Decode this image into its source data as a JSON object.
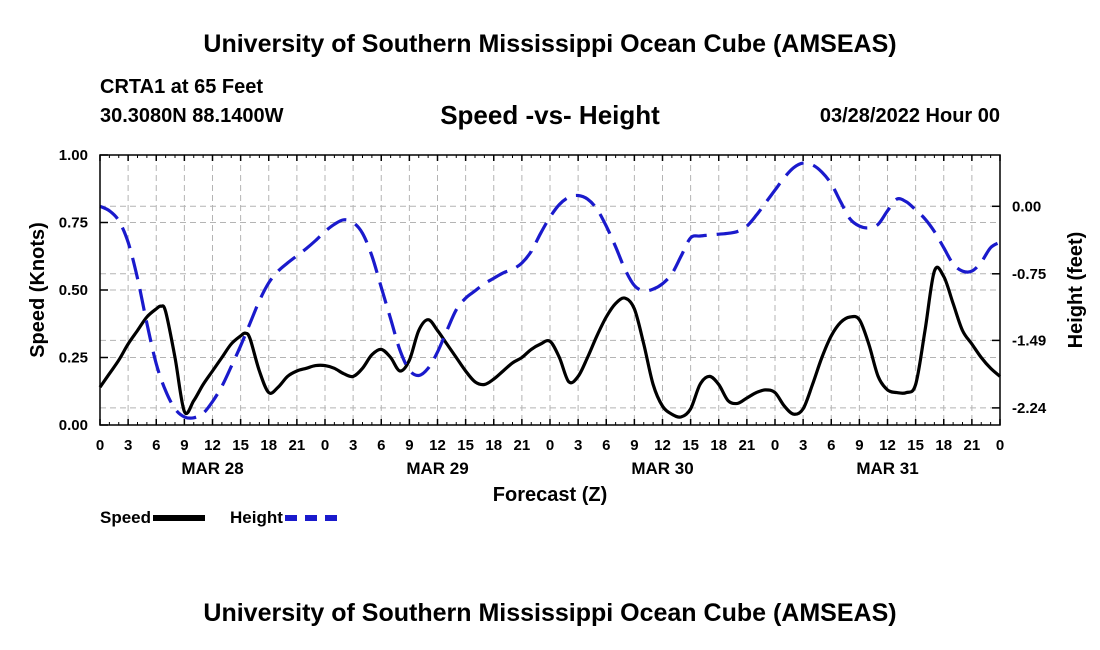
{
  "titles": {
    "main": "University of Southern Mississippi Ocean Cube (AMSEAS)",
    "footer": "University of Southern Mississippi Ocean Cube (AMSEAS)"
  },
  "station": {
    "name": "CRTA1 at 65 Feet",
    "latlon": "30.3080N  88.1400W",
    "datetime": "03/28/2022 Hour 00"
  },
  "legend": {
    "speed_label": "Speed",
    "height_label": "Height"
  },
  "colors": {
    "speed": "#000000",
    "height": "#1a1acc",
    "grid": "#b4b4b4"
  },
  "chart_data": {
    "type": "line",
    "title": "Speed -vs- Height",
    "xlabel": "Forecast (Z)",
    "ylabel": "Speed (Knots)",
    "ylabel_right": "Height (feet)",
    "x_range": [
      0,
      96
    ],
    "ylim": [
      0,
      1.0
    ],
    "y2lim": [
      -2.43,
      0.57
    ],
    "x_ticks": [
      0,
      3,
      6,
      9,
      12,
      15,
      18,
      21,
      24,
      27,
      30,
      33,
      36,
      39,
      42,
      45,
      48,
      51,
      54,
      57,
      60,
      63,
      66,
      69,
      72,
      75,
      78,
      81,
      84,
      87,
      90,
      93,
      96
    ],
    "x_tick_labels": [
      "0",
      "3",
      "6",
      "9",
      "12",
      "15",
      "18",
      "21",
      "0",
      "3",
      "6",
      "9",
      "12",
      "15",
      "18",
      "21",
      "0",
      "3",
      "6",
      "9",
      "12",
      "15",
      "18",
      "21",
      "0",
      "3",
      "6",
      "9",
      "12",
      "15",
      "18",
      "21",
      "0"
    ],
    "date_labels": [
      {
        "x": 12,
        "label": "MAR 28"
      },
      {
        "x": 36,
        "label": "MAR 29"
      },
      {
        "x": 60,
        "label": "MAR 30"
      },
      {
        "x": 84,
        "label": "MAR 31"
      }
    ],
    "y_ticks": [
      0,
      0.25,
      0.5,
      0.75,
      1.0
    ],
    "y_tick_labels": [
      "0.00",
      "0.25",
      "0.50",
      "0.75",
      "1.00"
    ],
    "y2_ticks": [
      0.0,
      -0.75,
      -1.49,
      -2.24
    ],
    "y2_tick_labels": [
      "0.00",
      "-0.75",
      "-1.49",
      "-2.24"
    ],
    "series": [
      {
        "name": "Speed",
        "axis": "left",
        "style": "solid",
        "x": [
          0,
          1,
          2,
          3,
          4,
          5,
          6,
          6.5,
          7,
          8,
          9,
          10,
          11,
          12,
          13,
          14,
          15,
          15.5,
          16,
          17,
          18,
          19,
          20,
          21,
          22,
          23,
          24,
          25,
          26,
          27,
          28,
          29,
          30,
          31,
          32,
          33,
          34,
          35,
          36,
          37,
          38,
          39,
          40,
          41,
          42,
          43,
          44,
          45,
          46,
          47,
          48,
          49,
          50,
          51,
          52,
          53,
          54,
          55,
          56,
          57,
          58,
          59,
          60,
          61,
          62,
          63,
          64,
          65,
          66,
          67,
          68,
          69,
          70,
          71,
          72,
          73,
          74,
          75,
          76,
          77,
          78,
          79,
          80,
          81,
          82,
          83,
          84,
          85,
          86,
          87,
          88,
          89,
          90,
          91,
          92,
          93,
          94,
          95,
          96
        ],
        "values": [
          0.14,
          0.19,
          0.24,
          0.3,
          0.35,
          0.4,
          0.43,
          0.44,
          0.42,
          0.25,
          0.05,
          0.09,
          0.15,
          0.2,
          0.25,
          0.3,
          0.33,
          0.34,
          0.32,
          0.2,
          0.12,
          0.14,
          0.18,
          0.2,
          0.21,
          0.22,
          0.22,
          0.21,
          0.19,
          0.18,
          0.21,
          0.26,
          0.28,
          0.25,
          0.2,
          0.24,
          0.35,
          0.39,
          0.35,
          0.3,
          0.25,
          0.2,
          0.16,
          0.15,
          0.17,
          0.2,
          0.23,
          0.25,
          0.28,
          0.3,
          0.31,
          0.25,
          0.16,
          0.18,
          0.25,
          0.33,
          0.4,
          0.45,
          0.47,
          0.43,
          0.3,
          0.15,
          0.07,
          0.04,
          0.03,
          0.06,
          0.15,
          0.18,
          0.15,
          0.09,
          0.08,
          0.1,
          0.12,
          0.13,
          0.12,
          0.07,
          0.04,
          0.06,
          0.15,
          0.25,
          0.33,
          0.38,
          0.4,
          0.39,
          0.3,
          0.18,
          0.13,
          0.12,
          0.12,
          0.15,
          0.35,
          0.57,
          0.55,
          0.45,
          0.35,
          0.3,
          0.25,
          0.21,
          0.18
        ]
      },
      {
        "name": "Height",
        "axis": "right",
        "style": "dashed",
        "x": [
          0,
          1,
          2,
          3,
          4,
          5,
          6,
          7,
          8,
          9,
          10,
          11,
          12,
          13,
          14,
          15,
          16,
          17,
          18,
          19,
          20,
          21,
          22,
          23,
          24,
          25,
          26,
          27,
          28,
          29,
          30,
          31,
          32,
          33,
          34,
          35,
          36,
          37,
          38,
          39,
          40,
          41,
          42,
          43,
          44,
          45,
          46,
          47,
          48,
          49,
          50,
          51,
          52,
          53,
          54,
          55,
          56,
          57,
          58,
          59,
          60,
          61,
          62,
          63,
          64,
          65,
          66,
          67,
          68,
          69,
          70,
          71,
          72,
          73,
          74,
          75,
          76,
          77,
          78,
          79,
          80,
          81,
          82,
          83,
          84,
          85,
          86,
          87,
          88,
          89,
          90,
          91,
          92,
          93,
          94,
          95,
          96
        ],
        "values": [
          0.0,
          -0.05,
          -0.16,
          -0.4,
          -0.8,
          -1.3,
          -1.75,
          -2.05,
          -2.25,
          -2.34,
          -2.35,
          -2.3,
          -2.17,
          -2.0,
          -1.78,
          -1.55,
          -1.3,
          -1.05,
          -0.85,
          -0.72,
          -0.63,
          -0.55,
          -0.47,
          -0.38,
          -0.28,
          -0.2,
          -0.15,
          -0.18,
          -0.3,
          -0.55,
          -0.9,
          -1.25,
          -1.6,
          -1.82,
          -1.88,
          -1.8,
          -1.62,
          -1.38,
          -1.15,
          -1.02,
          -0.94,
          -0.86,
          -0.8,
          -0.74,
          -0.7,
          -0.63,
          -0.5,
          -0.3,
          -0.12,
          0.02,
          0.1,
          0.12,
          0.08,
          -0.03,
          -0.22,
          -0.45,
          -0.7,
          -0.88,
          -0.94,
          -0.92,
          -0.86,
          -0.75,
          -0.55,
          -0.35,
          -0.33,
          -0.32,
          -0.31,
          -0.3,
          -0.28,
          -0.22,
          -0.1,
          0.04,
          0.18,
          0.32,
          0.43,
          0.48,
          0.46,
          0.38,
          0.25,
          0.05,
          -0.14,
          -0.22,
          -0.24,
          -0.2,
          -0.05,
          0.08,
          0.05,
          -0.04,
          -0.14,
          -0.28,
          -0.46,
          -0.64,
          -0.72,
          -0.72,
          -0.62,
          -0.46,
          -0.4
        ]
      }
    ]
  }
}
